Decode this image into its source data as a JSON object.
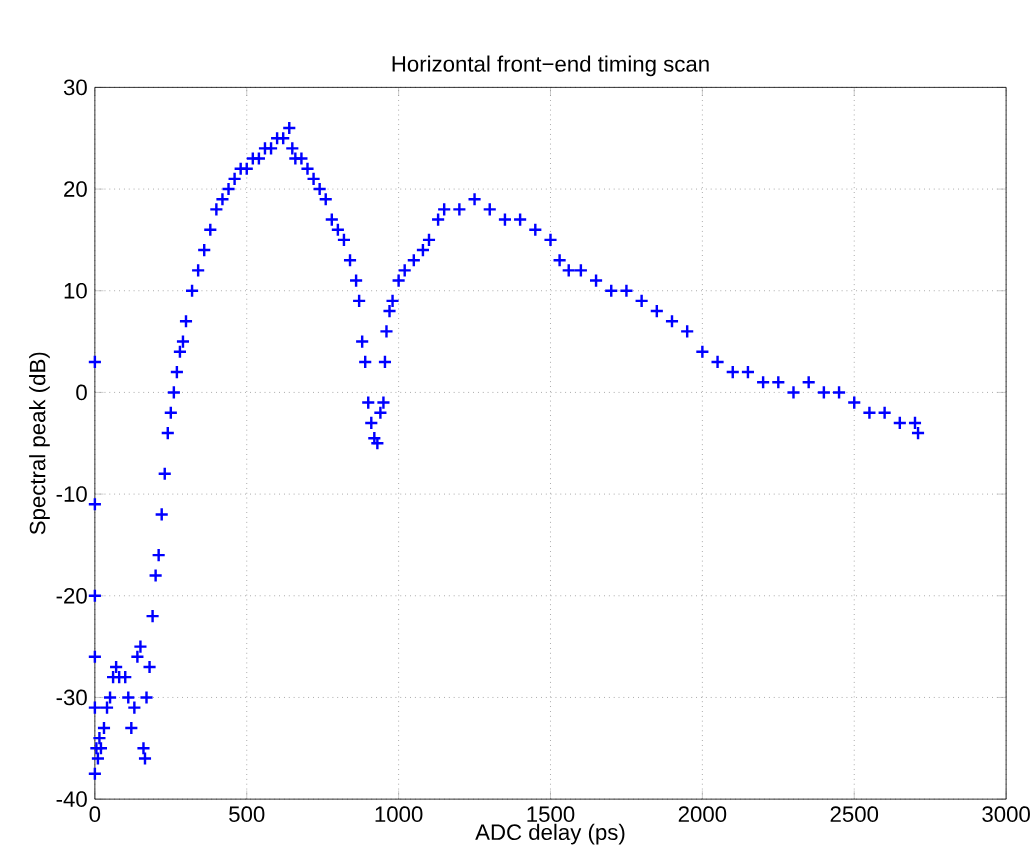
{
  "chart_data": {
    "type": "scatter",
    "title": "Horizontal front−end timing scan",
    "xlabel": "ADC delay (ps)",
    "ylabel": "Spectral peak (dB)",
    "xlim": [
      0,
      3000
    ],
    "ylim": [
      -40,
      30
    ],
    "xticks": [
      0,
      500,
      1000,
      1500,
      2000,
      2500,
      3000
    ],
    "yticks": [
      -40,
      -30,
      -20,
      -10,
      0,
      10,
      20,
      30
    ],
    "grid": true,
    "marker": "cross",
    "color": "#0000ff",
    "x": [
      0,
      0,
      0,
      0,
      0,
      0,
      5,
      10,
      15,
      20,
      30,
      40,
      50,
      60,
      70,
      80,
      100,
      110,
      120,
      130,
      140,
      150,
      160,
      165,
      170,
      180,
      190,
      200,
      210,
      220,
      230,
      240,
      250,
      260,
      270,
      280,
      290,
      300,
      320,
      340,
      360,
      380,
      400,
      420,
      440,
      460,
      480,
      500,
      520,
      540,
      560,
      580,
      600,
      620,
      640,
      650,
      660,
      680,
      700,
      720,
      740,
      760,
      780,
      800,
      820,
      840,
      860,
      870,
      880,
      890,
      900,
      910,
      920,
      930,
      940,
      950,
      955,
      960,
      970,
      980,
      1000,
      1020,
      1050,
      1080,
      1100,
      1130,
      1150,
      1200,
      1250,
      1300,
      1350,
      1400,
      1450,
      1500,
      1530,
      1560,
      1600,
      1650,
      1700,
      1750,
      1800,
      1850,
      1900,
      1950,
      2000,
      2050,
      2100,
      2150,
      2200,
      2250,
      2300,
      2350,
      2400,
      2450,
      2500,
      2550,
      2600,
      2650,
      2700,
      2710
    ],
    "values": [
      3,
      -11,
      -20,
      -26,
      -31,
      -37.5,
      -35,
      -36,
      -34,
      -35,
      -33,
      -31,
      -30,
      -28,
      -27,
      -28,
      -28,
      -30,
      -33,
      -31,
      -26,
      -25,
      -35,
      -36,
      -30,
      -27,
      -22,
      -18,
      -16,
      -12,
      -8,
      -4,
      -2,
      0,
      2,
      4,
      5,
      7,
      10,
      12,
      14,
      16,
      18,
      19,
      20,
      21,
      22,
      22,
      23,
      23,
      24,
      24,
      25,
      25,
      26,
      24,
      23,
      23,
      22,
      21,
      20,
      19,
      17,
      16,
      15,
      13,
      11,
      9,
      5,
      3,
      -1,
      -3,
      -4.5,
      -5,
      -2,
      -1,
      3,
      6,
      8,
      9,
      11,
      12,
      13,
      14,
      15,
      17,
      18,
      18,
      19,
      18,
      17,
      17,
      16,
      15,
      13,
      12,
      12,
      11,
      10,
      10,
      9,
      8,
      7,
      6,
      4,
      3,
      2,
      2,
      1,
      1,
      0,
      1,
      0,
      0,
      -1,
      -2,
      -2,
      -3,
      -3,
      -4
    ]
  }
}
